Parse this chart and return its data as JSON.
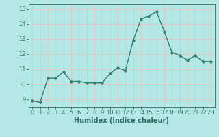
{
  "title": "",
  "xlabel": "Humidex (Indice chaleur)",
  "ylabel": "",
  "x_values": [
    0,
    1,
    2,
    3,
    4,
    5,
    6,
    7,
    8,
    9,
    10,
    11,
    12,
    13,
    14,
    15,
    16,
    17,
    18,
    19,
    20,
    21,
    22,
    23
  ],
  "y_values": [
    8.9,
    8.8,
    10.4,
    10.4,
    10.8,
    10.2,
    10.2,
    10.1,
    10.1,
    10.1,
    10.7,
    11.1,
    10.9,
    12.9,
    14.3,
    14.5,
    14.8,
    13.5,
    12.1,
    11.9,
    11.6,
    11.9,
    11.5,
    11.5
  ],
  "line_color": "#2e7d6e",
  "marker_color": "#2e7d6e",
  "bg_color": "#b3e8e5",
  "grid_color": "#d8f0ee",
  "text_color": "#2e6e64",
  "ylim": [
    8.5,
    15.3
  ],
  "xlim": [
    -0.5,
    23.5
  ],
  "yticks": [
    9,
    10,
    11,
    12,
    13,
    14,
    15
  ],
  "xticks": [
    0,
    1,
    2,
    3,
    4,
    5,
    6,
    7,
    8,
    9,
    10,
    11,
    12,
    13,
    14,
    15,
    16,
    17,
    18,
    19,
    20,
    21,
    22,
    23
  ],
  "marker_size": 2.5,
  "line_width": 1.0,
  "tick_fontsize": 6.0,
  "xlabel_fontsize": 7.0
}
